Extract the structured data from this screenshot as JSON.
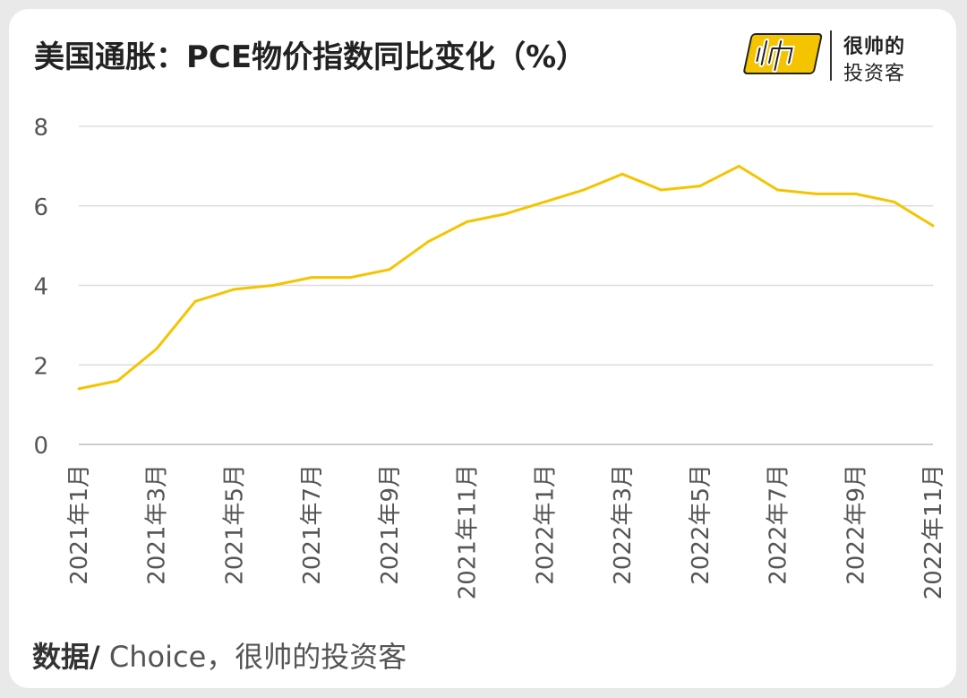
{
  "title": "美国通胀：PCE物价指数同比变化（%）",
  "logo": {
    "icon": "shuai-logo-icon",
    "mark": "J巾",
    "line1": "很帅的",
    "line2": "投资客",
    "color": "#f5c400"
  },
  "source": {
    "label": "数据/",
    "text": " Choice，很帅的投资客"
  },
  "chart_data": {
    "type": "line",
    "title": "美国通胀：PCE物价指数同比变化（%）",
    "xlabel": "",
    "ylabel": "",
    "ylim": [
      0,
      8
    ],
    "yticks": [
      0,
      2,
      4,
      6,
      8
    ],
    "grid": true,
    "line_color": "#f5c400",
    "x": [
      "2021年1月",
      "2021年2月",
      "2021年3月",
      "2021年4月",
      "2021年5月",
      "2021年6月",
      "2021年7月",
      "2021年8月",
      "2021年9月",
      "2021年10月",
      "2021年11月",
      "2021年12月",
      "2022年1月",
      "2022年2月",
      "2022年3月",
      "2022年4月",
      "2022年5月",
      "2022年6月",
      "2022年7月",
      "2022年8月",
      "2022年9月",
      "2022年10月",
      "2022年11月"
    ],
    "x_tick_labels": [
      "2021年1月",
      "2021年3月",
      "2021年5月",
      "2021年7月",
      "2021年9月",
      "2021年11月",
      "2022年1月",
      "2022年3月",
      "2022年5月",
      "2022年7月",
      "2022年9月",
      "2022年11月"
    ],
    "series": [
      {
        "values": [
          1.4,
          1.6,
          2.4,
          3.6,
          3.9,
          4.0,
          4.2,
          4.2,
          4.4,
          5.1,
          5.6,
          5.8,
          6.1,
          6.4,
          6.8,
          6.4,
          6.5,
          7.0,
          6.4,
          6.3,
          6.3,
          6.1,
          5.5
        ]
      }
    ]
  }
}
